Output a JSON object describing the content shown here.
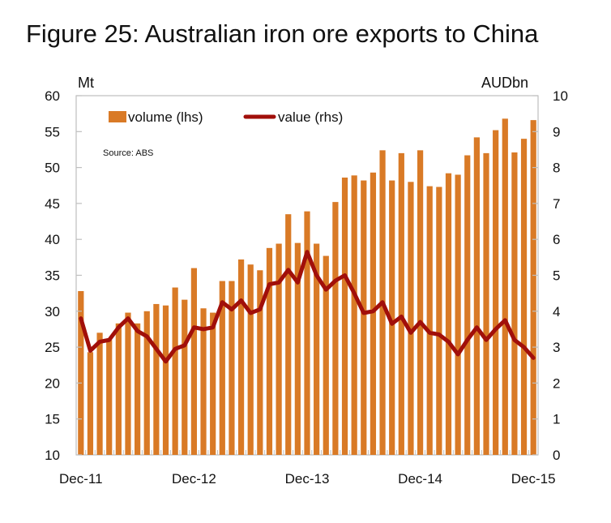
{
  "title": "Figure 25: Australian iron ore exports to China",
  "left_unit": "Mt",
  "right_unit": "AUDbn",
  "source": "Source: ABS",
  "colors": {
    "volume": "#D97A26",
    "value": "#A10F0A",
    "frame": "#BFBFBF"
  },
  "chart_data": {
    "type": "bar",
    "x": [
      "Dec-11",
      "Jan-12",
      "Feb-12",
      "Mar-12",
      "Apr-12",
      "May-12",
      "Jun-12",
      "Jul-12",
      "Aug-12",
      "Sep-12",
      "Oct-12",
      "Nov-12",
      "Dec-12",
      "Jan-13",
      "Feb-13",
      "Mar-13",
      "Apr-13",
      "May-13",
      "Jun-13",
      "Jul-13",
      "Aug-13",
      "Sep-13",
      "Oct-13",
      "Nov-13",
      "Dec-13",
      "Jan-14",
      "Feb-14",
      "Mar-14",
      "Apr-14",
      "May-14",
      "Jun-14",
      "Jul-14",
      "Aug-14",
      "Sep-14",
      "Oct-14",
      "Nov-14",
      "Dec-14",
      "Jan-15",
      "Feb-15",
      "Mar-15",
      "Apr-15",
      "May-15",
      "Jun-15",
      "Jul-15",
      "Aug-15",
      "Sep-15",
      "Oct-15",
      "Nov-15",
      "Dec-15"
    ],
    "x_tick_labels": [
      "Dec-11",
      "Dec-12",
      "Dec-13",
      "Dec-14",
      "Dec-15"
    ],
    "legend": [
      "volume (lhs)",
      "value (rhs)"
    ],
    "series": [
      {
        "name": "volume (lhs)",
        "type": "bar",
        "axis": "left",
        "values": [
          32.8,
          24.3,
          27.0,
          26.0,
          28.3,
          29.8,
          28.3,
          30.0,
          31.0,
          30.8,
          33.3,
          31.6,
          36.0,
          30.4,
          29.8,
          34.2,
          34.2,
          37.2,
          36.5,
          35.7,
          38.8,
          39.4,
          43.5,
          39.5,
          43.9,
          39.4,
          37.7,
          45.2,
          48.6,
          48.9,
          48.2,
          49.3,
          52.4,
          48.2,
          52.0,
          48.0,
          52.4,
          47.4,
          47.3,
          49.2,
          49.0,
          51.7,
          54.2,
          52.0,
          55.2,
          56.8,
          52.1,
          54.0,
          56.6
        ]
      },
      {
        "name": "value (rhs)",
        "type": "line",
        "axis": "right",
        "values": [
          3.8,
          2.9,
          3.15,
          3.2,
          3.55,
          3.8,
          3.45,
          3.3,
          2.95,
          2.6,
          2.95,
          3.05,
          3.55,
          3.5,
          3.55,
          4.25,
          4.05,
          4.3,
          3.95,
          4.05,
          4.75,
          4.8,
          5.15,
          4.8,
          5.65,
          5.0,
          4.6,
          4.85,
          5.0,
          4.5,
          3.95,
          4.0,
          4.25,
          3.65,
          3.85,
          3.4,
          3.7,
          3.4,
          3.35,
          3.15,
          2.8,
          3.2,
          3.55,
          3.2,
          3.5,
          3.75,
          3.2,
          3.0,
          2.7
        ]
      }
    ],
    "y_left": {
      "min": 10,
      "max": 60,
      "step": 5,
      "label": "Mt"
    },
    "y_right": {
      "min": 0,
      "max": 10,
      "step": 1,
      "label": "AUDbn"
    },
    "grid": false,
    "legend_position": "top-left"
  }
}
